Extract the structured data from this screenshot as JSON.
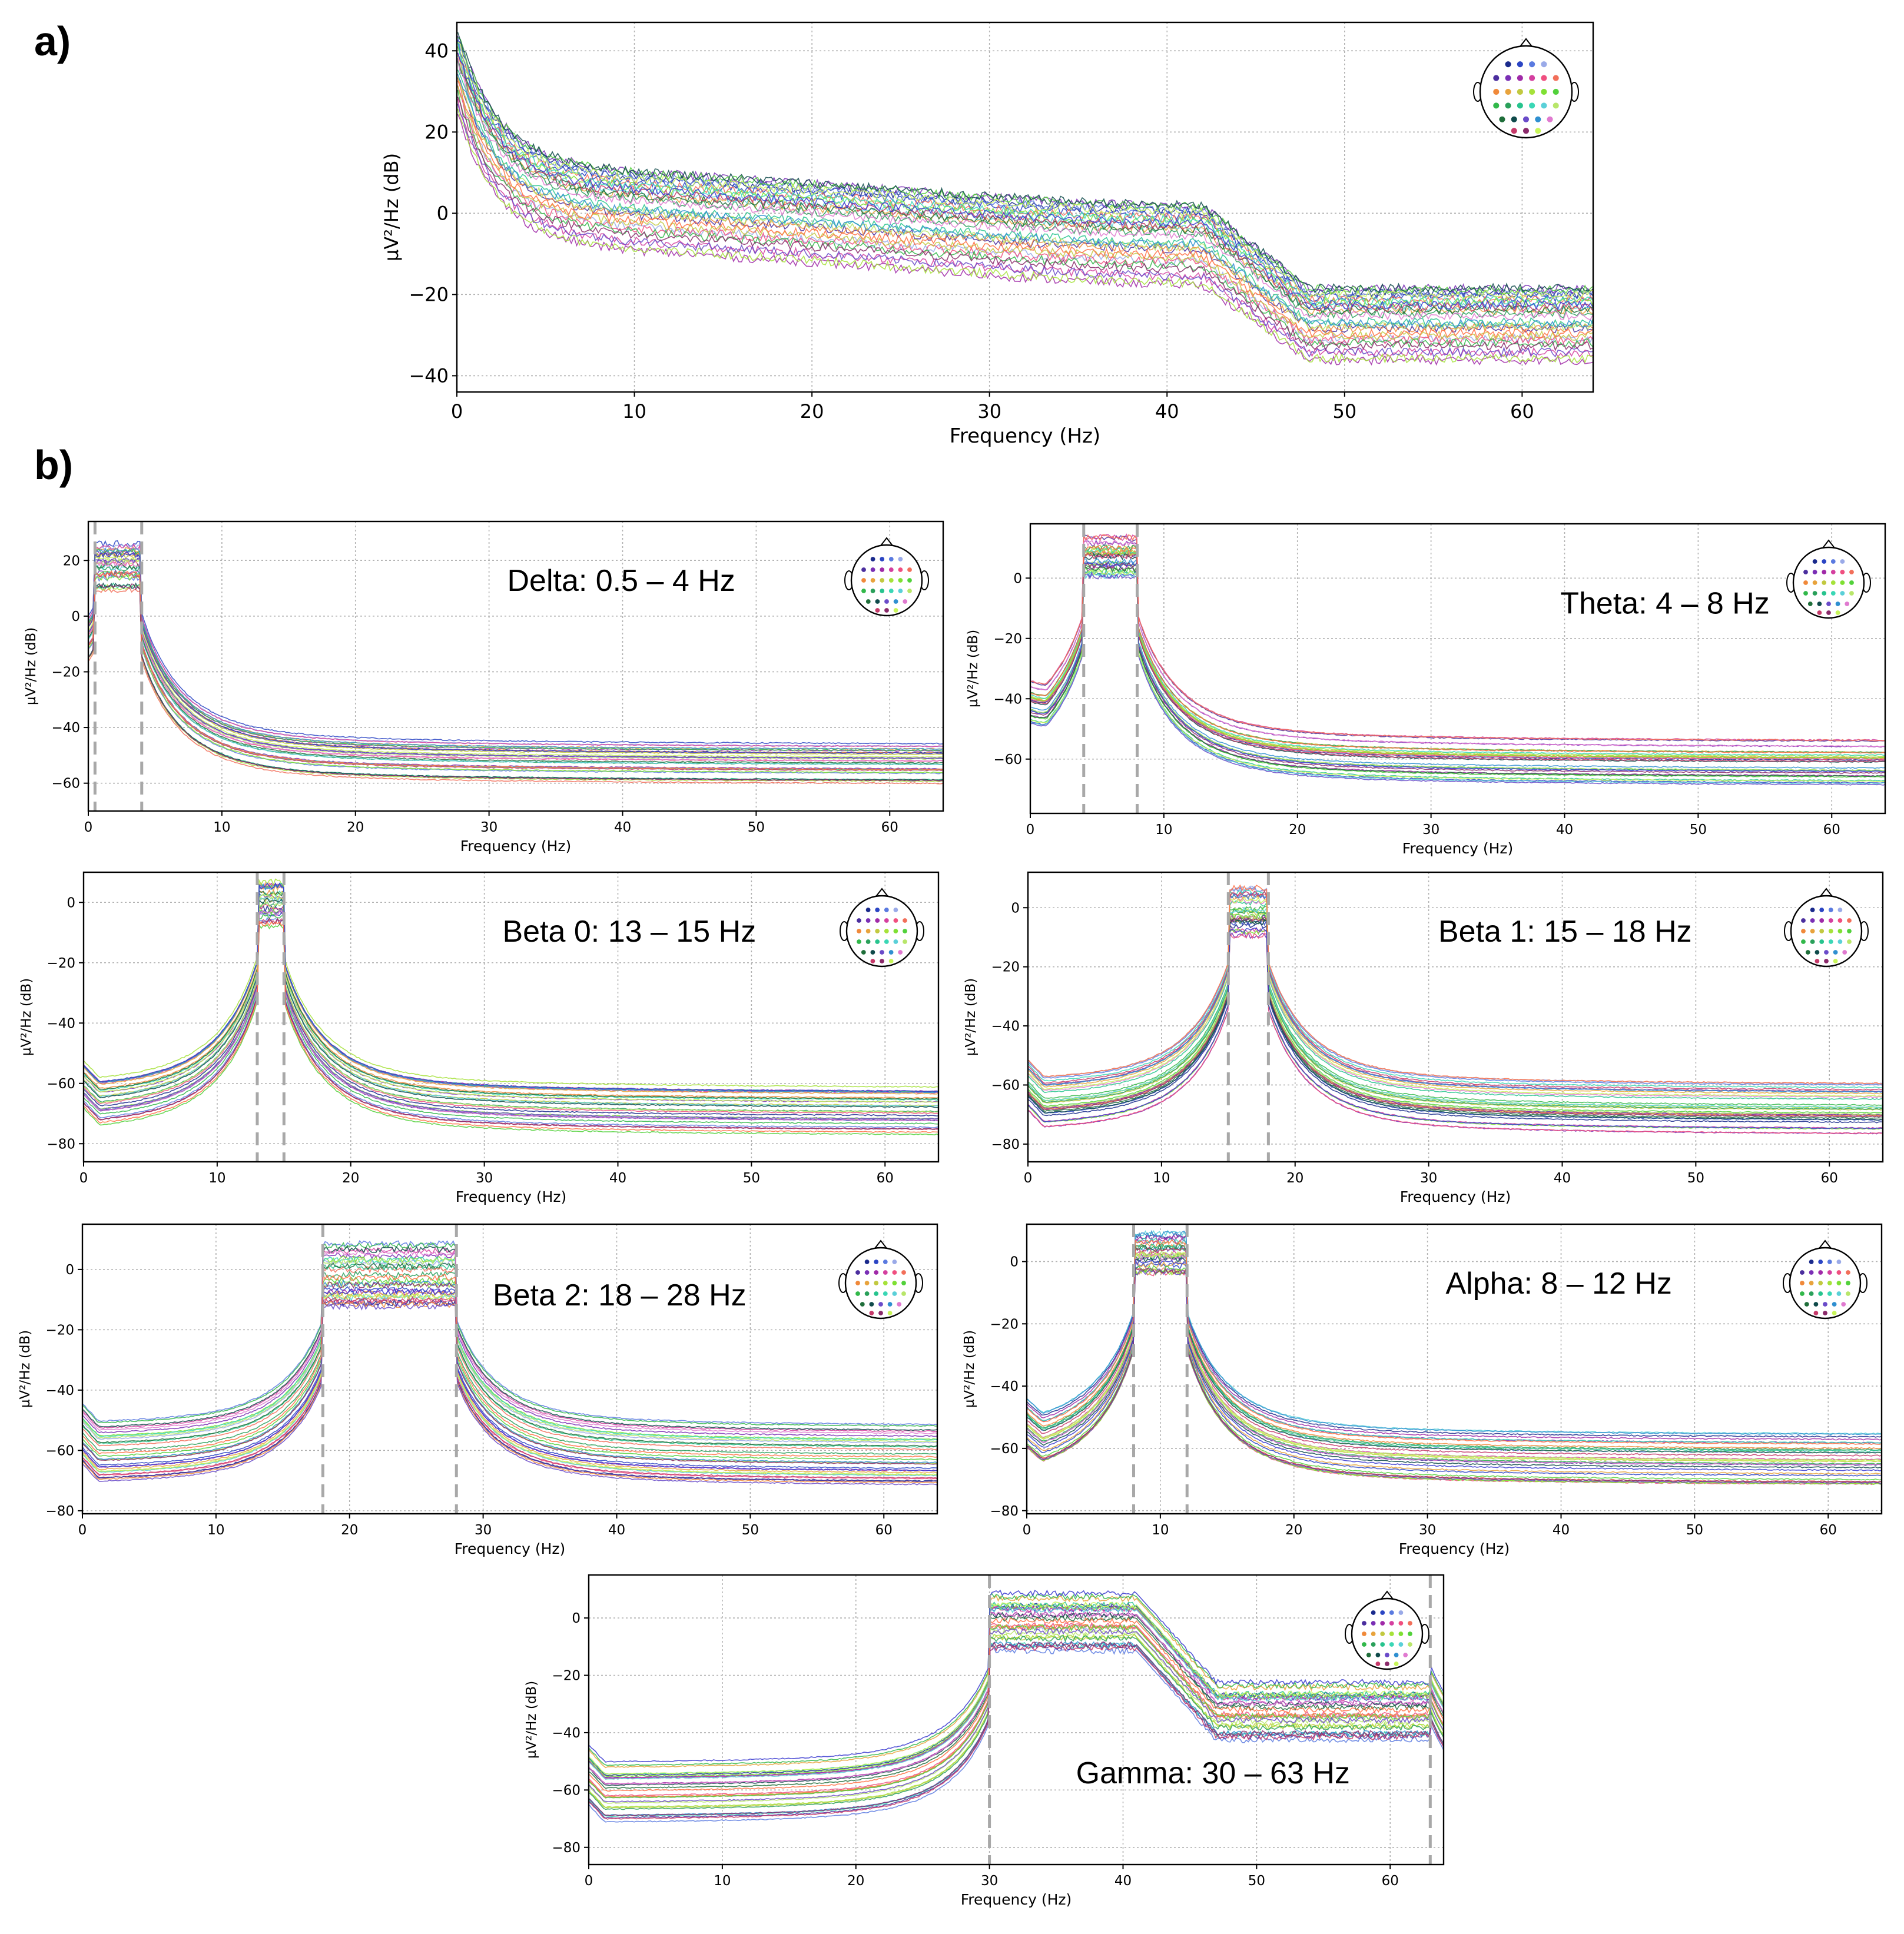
{
  "figure": {
    "panel_a_label": "a)",
    "panel_b_label": "b)"
  },
  "chart_data": [
    {
      "id": "a",
      "type": "line",
      "title": "",
      "xlabel": "Frequency (Hz)",
      "ylabel": "µV²/Hz (dB)",
      "xlim": [
        0,
        64
      ],
      "ylim": [
        -44,
        47
      ],
      "xticks": [
        0,
        10,
        20,
        30,
        40,
        50,
        60
      ],
      "yticks": [
        -40,
        -20,
        0,
        20,
        40
      ],
      "grid": true,
      "annotation": "",
      "band_edges": [],
      "profile": "broadband",
      "series_count": 32,
      "series_summary": {
        "offset_range_db": [
          -13,
          9
        ],
        "tail_range_db": [
          -37,
          -17
        ]
      },
      "legend": "sensor-head-topomap, top-right"
    },
    {
      "id": "delta",
      "type": "line",
      "title": "",
      "xlabel": "Frequency (Hz)",
      "ylabel": "µV²/Hz (dB)",
      "xlim": [
        0,
        64
      ],
      "ylim": [
        -70,
        34
      ],
      "xticks": [
        0,
        10,
        20,
        30,
        40,
        50,
        60
      ],
      "yticks": [
        -60,
        -40,
        -20,
        0,
        20
      ],
      "grid": true,
      "annotation": "Delta: 0.5 – 4 Hz",
      "band_edges": [
        0.5,
        4
      ],
      "profile": "band",
      "passband_db": [
        8,
        28
      ],
      "stop_tail_db": [
        -62,
        -45
      ],
      "series_count": 32,
      "legend": "sensor-head-topomap, top-right"
    },
    {
      "id": "theta",
      "type": "line",
      "title": "",
      "xlabel": "Frequency (Hz)",
      "ylabel": "µV²/Hz (dB)",
      "xlim": [
        0,
        64
      ],
      "ylim": [
        -78,
        18
      ],
      "xticks": [
        0,
        10,
        20,
        30,
        40,
        50,
        60
      ],
      "yticks": [
        -60,
        -40,
        -20,
        0
      ],
      "grid": true,
      "annotation": "Theta: 4 – 8 Hz",
      "band_edges": [
        4,
        8
      ],
      "profile": "band",
      "passband_db": [
        0,
        14
      ],
      "stop_tail_db": [
        -70,
        -54
      ],
      "series_count": 32,
      "legend": "sensor-head-topomap, top-right"
    },
    {
      "id": "beta0",
      "type": "line",
      "title": "",
      "xlabel": "Frequency (Hz)",
      "ylabel": "µV²/Hz (dB)",
      "xlim": [
        0,
        64
      ],
      "ylim": [
        -86,
        10
      ],
      "xticks": [
        0,
        10,
        20,
        30,
        40,
        50,
        60
      ],
      "yticks": [
        -80,
        -60,
        -40,
        -20,
        0
      ],
      "grid": true,
      "annotation": "Beta 0: 13 – 15 Hz",
      "band_edges": [
        13,
        15
      ],
      "profile": "band",
      "passband_db": [
        -8,
        7
      ],
      "stop_tail_db": [
        -78,
        -62
      ],
      "series_count": 32,
      "legend": "sensor-head-topomap, top-right"
    },
    {
      "id": "beta1",
      "type": "line",
      "title": "",
      "xlabel": "Frequency (Hz)",
      "ylabel": "µV²/Hz (dB)",
      "xlim": [
        0,
        64
      ],
      "ylim": [
        -86,
        12
      ],
      "xticks": [
        0,
        10,
        20,
        30,
        40,
        50,
        60
      ],
      "yticks": [
        -80,
        -60,
        -40,
        -20,
        0
      ],
      "grid": true,
      "annotation": "Beta 1: 15 – 18 Hz",
      "band_edges": [
        15,
        18
      ],
      "profile": "band",
      "passband_db": [
        -10,
        7
      ],
      "stop_tail_db": [
        -78,
        -60
      ],
      "series_count": 32,
      "legend": "sensor-head-topomap, top-right"
    },
    {
      "id": "beta2",
      "type": "line",
      "title": "",
      "xlabel": "Frequency (Hz)",
      "ylabel": "µV²/Hz (dB)",
      "xlim": [
        0,
        64
      ],
      "ylim": [
        -81,
        15
      ],
      "xticks": [
        0,
        10,
        20,
        30,
        40,
        50,
        60
      ],
      "yticks": [
        -80,
        -60,
        -40,
        -20,
        0
      ],
      "grid": true,
      "annotation": "Beta 2: 18 – 28 Hz",
      "band_edges": [
        18,
        28
      ],
      "profile": "band",
      "passband_db": [
        -13,
        9
      ],
      "stop_tail_db": [
        -73,
        -52
      ],
      "series_count": 32,
      "legend": "sensor-head-topomap, top-right"
    },
    {
      "id": "alpha",
      "type": "line",
      "title": "",
      "xlabel": "Frequency (Hz)",
      "ylabel": "µV²/Hz (dB)",
      "xlim": [
        0,
        64
      ],
      "ylim": [
        -81,
        12
      ],
      "xticks": [
        0,
        10,
        20,
        30,
        40,
        50,
        60
      ],
      "yticks": [
        -80,
        -60,
        -40,
        -20,
        0
      ],
      "grid": true,
      "annotation": "Alpha: 8 – 12 Hz",
      "band_edges": [
        8,
        12
      ],
      "profile": "band",
      "passband_db": [
        -4,
        9
      ],
      "stop_tail_db": [
        -73,
        -56
      ],
      "series_count": 32,
      "legend": "sensor-head-topomap, top-right"
    },
    {
      "id": "gamma",
      "type": "line",
      "title": "",
      "xlabel": "Frequency (Hz)",
      "ylabel": "µV²/Hz (dB)",
      "xlim": [
        0,
        64
      ],
      "ylim": [
        -86,
        15
      ],
      "xticks": [
        0,
        10,
        20,
        30,
        40,
        50,
        60
      ],
      "yticks": [
        -80,
        -60,
        -40,
        -20,
        0
      ],
      "grid": true,
      "annotation": "Gamma: 30 – 63 Hz",
      "band_edges": [
        30,
        63
      ],
      "profile": "gamma",
      "passband_db": [
        -13,
        9
      ],
      "stop_tail_db": [
        -74,
        -51
      ],
      "series_count": 32,
      "legend": "sensor-head-topomap, top-right"
    }
  ],
  "channel_colors": [
    "#1a2a8c",
    "#2b45c4",
    "#5a7ae0",
    "#9aaae8",
    "#4b2e9e",
    "#7a2fb5",
    "#a02aa8",
    "#d43f9f",
    "#f04f80",
    "#f26f5a",
    "#f0893a",
    "#e8a33c",
    "#c2c940",
    "#a6e23a",
    "#7fe033",
    "#52d13b",
    "#32b84a",
    "#2aa05a",
    "#27c48e",
    "#3ad7b5",
    "#5ad0d8",
    "#b8e66a",
    "#1f6e3a",
    "#0f4a4a",
    "#6a4bc9",
    "#2f8fd0",
    "#e07ad0",
    "#c63a6a",
    "#8a2a6a",
    "#c8f55a",
    "#3a3ad0",
    "#ff7043"
  ]
}
